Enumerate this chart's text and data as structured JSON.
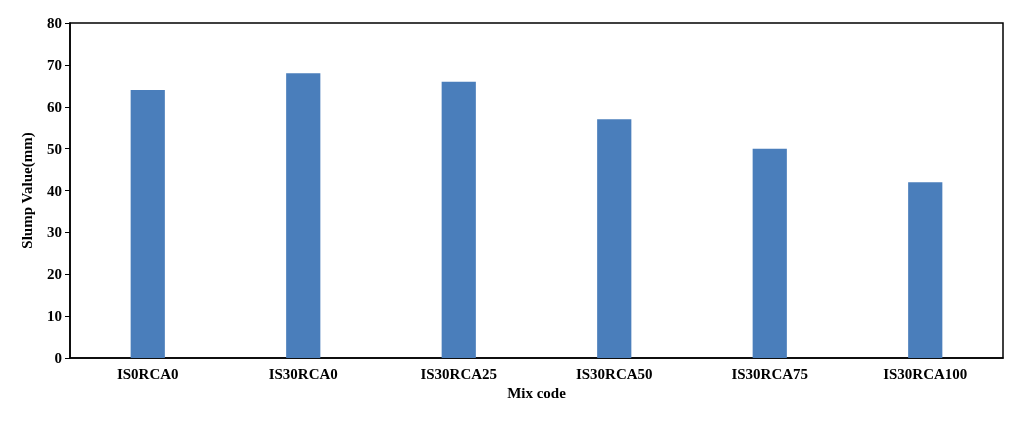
{
  "chart_data": {
    "type": "bar",
    "xlabel": "Mix code",
    "ylabel": "Slump Value(mm)",
    "categories": [
      "IS0RCA0",
      "IS30RCA0",
      "IS30RCA25",
      "IS30RCA50",
      "IS30RCA75",
      "IS30RCA100"
    ],
    "values": [
      64,
      68,
      66,
      57,
      50,
      42
    ],
    "color": "#4a7ebb",
    "ylim": [
      0,
      80
    ],
    "yticks": [
      0,
      10,
      20,
      30,
      40,
      50,
      60,
      70,
      80
    ],
    "grid": false
  }
}
